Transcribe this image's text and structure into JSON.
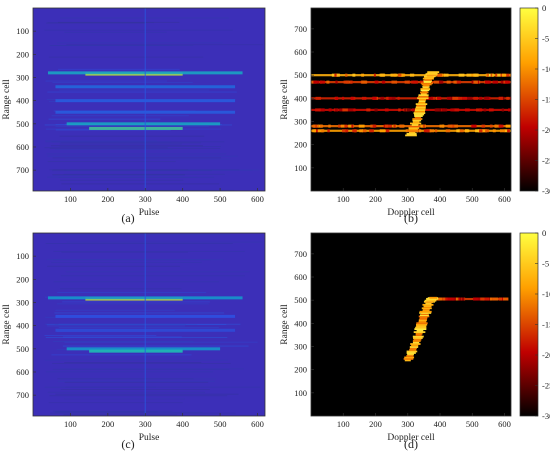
{
  "figure": {
    "panel_labels": [
      "(a)",
      "(b)",
      "(c)",
      "(d)"
    ]
  },
  "colors": {
    "parula_background": "#3c2fb8",
    "hot_background": "#000000",
    "colorbar_top": "#ffff40",
    "colorbar_bottom": "#000000"
  },
  "chart_data": [
    {
      "type": "heatmap",
      "panel": "(a)",
      "colormap": "parula",
      "xlabel": "Pulse",
      "ylabel": "Range cell",
      "xlim": [
        0,
        620
      ],
      "ylim": [
        0,
        790
      ],
      "y_reversed": true,
      "xticks": [
        100,
        200,
        300,
        400,
        500,
        600
      ],
      "yticks": [
        100,
        200,
        300,
        400,
        500,
        600,
        700
      ],
      "bands": [
        {
          "range_cell": 285,
          "x_from": 140,
          "x_to": 400,
          "intensity": 0.95
        },
        {
          "range_cell": 280,
          "x_from": 40,
          "x_to": 560,
          "intensity": 0.6
        },
        {
          "range_cell": 500,
          "x_from": 90,
          "x_to": 500,
          "intensity": 0.6
        },
        {
          "range_cell": 520,
          "x_from": 150,
          "x_to": 400,
          "intensity": 0.75
        },
        {
          "range_cell": 340,
          "x_from": 60,
          "x_to": 540,
          "intensity": 0.35
        },
        {
          "range_cell": 400,
          "x_from": 60,
          "x_to": 540,
          "intensity": 0.3
        },
        {
          "range_cell": 450,
          "x_from": 60,
          "x_to": 540,
          "intensity": 0.3
        }
      ],
      "vertical_line_at": 300
    },
    {
      "type": "heatmap",
      "panel": "(b)",
      "colormap": "hot",
      "xlabel": "Doppler cell",
      "ylabel": "Range cell",
      "xlim": [
        0,
        620
      ],
      "ylim": [
        0,
        790
      ],
      "y_reversed": false,
      "xticks": [
        100,
        200,
        300,
        400,
        500,
        600
      ],
      "yticks": [
        100,
        200,
        300,
        400,
        500,
        600,
        700
      ],
      "colorbar": {
        "range": [
          -30,
          0
        ],
        "ticks": [
          0,
          -5,
          -10,
          -15,
          -20,
          -25,
          -30
        ]
      },
      "bands": [
        {
          "range_cell": 500,
          "x_from": 0,
          "x_to": 620,
          "intensity": 0.75
        },
        {
          "range_cell": 470,
          "x_from": 0,
          "x_to": 620,
          "intensity": 0.5
        },
        {
          "range_cell": 400,
          "x_from": 0,
          "x_to": 620,
          "intensity": 0.45
        },
        {
          "range_cell": 350,
          "x_from": 0,
          "x_to": 620,
          "intensity": 0.4
        },
        {
          "range_cell": 280,
          "x_from": 0,
          "x_to": 620,
          "intensity": 0.6
        },
        {
          "range_cell": 260,
          "x_from": 0,
          "x_to": 620,
          "intensity": 0.7
        }
      ],
      "target_streak": [
        [
          310,
          240
        ],
        [
          335,
          330
        ],
        [
          350,
          420
        ],
        [
          365,
          490
        ],
        [
          380,
          515
        ]
      ]
    },
    {
      "type": "heatmap",
      "panel": "(c)",
      "colormap": "parula",
      "xlabel": "Pulse",
      "ylabel": "Range cell",
      "xlim": [
        0,
        620
      ],
      "ylim": [
        0,
        790
      ],
      "y_reversed": true,
      "xticks": [
        100,
        200,
        300,
        400,
        500,
        600
      ],
      "yticks": [
        100,
        200,
        300,
        400,
        500,
        600,
        700
      ],
      "bands": [
        {
          "range_cell": 285,
          "x_from": 140,
          "x_to": 400,
          "intensity": 0.95
        },
        {
          "range_cell": 280,
          "x_from": 40,
          "x_to": 560,
          "intensity": 0.55
        },
        {
          "range_cell": 500,
          "x_from": 90,
          "x_to": 500,
          "intensity": 0.55
        },
        {
          "range_cell": 510,
          "x_from": 150,
          "x_to": 400,
          "intensity": 0.7
        },
        {
          "range_cell": 360,
          "x_from": 60,
          "x_to": 540,
          "intensity": 0.25
        },
        {
          "range_cell": 420,
          "x_from": 60,
          "x_to": 540,
          "intensity": 0.22
        }
      ],
      "vertical_line_at": 300
    },
    {
      "type": "heatmap",
      "panel": "(d)",
      "colormap": "hot",
      "xlabel": "Doppler cell",
      "ylabel": "Range cell",
      "xlim": [
        0,
        620
      ],
      "ylim": [
        0,
        790
      ],
      "y_reversed": false,
      "xticks": [
        100,
        200,
        300,
        400,
        500,
        600
      ],
      "yticks": [
        100,
        200,
        300,
        400,
        500,
        600,
        700
      ],
      "colorbar": {
        "range": [
          -30,
          0
        ],
        "ticks": [
          0,
          -5,
          -10,
          -15,
          -20,
          -25,
          -30
        ]
      },
      "bands": [
        {
          "range_cell": 505,
          "x_from": 360,
          "x_to": 600,
          "intensity": 0.5
        }
      ],
      "target_streak": [
        [
          300,
          240
        ],
        [
          330,
          330
        ],
        [
          348,
          420
        ],
        [
          365,
          490
        ],
        [
          380,
          512
        ]
      ]
    }
  ]
}
